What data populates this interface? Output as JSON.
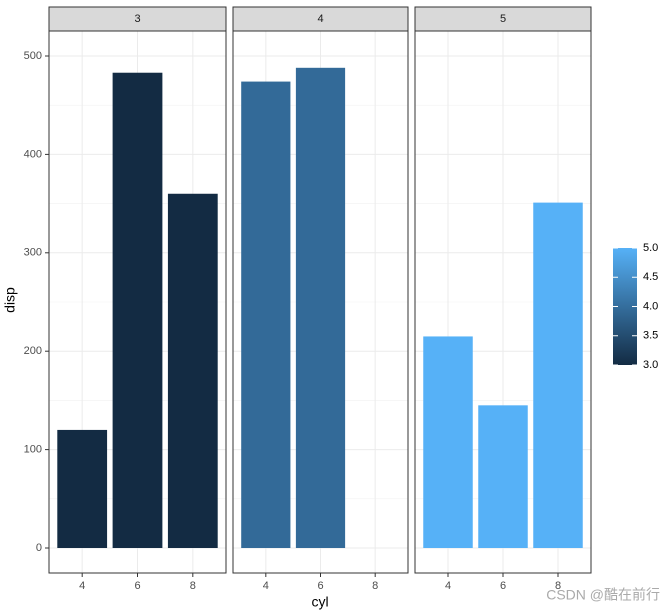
{
  "chart_data": {
    "type": "bar",
    "x_label": "cyl",
    "y_label": "disp",
    "categories": [
      "4",
      "6",
      "8"
    ],
    "facets": [
      {
        "label": "3",
        "color": "#132B43",
        "values": [
          120,
          483,
          360
        ]
      },
      {
        "label": "4",
        "color": "#336A98",
        "values": [
          474,
          488,
          null
        ]
      },
      {
        "label": "5",
        "color": "#56B1F7",
        "values": [
          215,
          145,
          351
        ]
      }
    ],
    "ylim": [
      -25.4,
      525.4
    ],
    "yticks": [
      0,
      100,
      200,
      300,
      400,
      500
    ],
    "yminorticks": [
      50,
      150,
      250,
      350,
      450
    ],
    "grid": true,
    "colorbar": {
      "lim": [
        3,
        5
      ],
      "colors": [
        "#132B43",
        "#56B1F7"
      ],
      "ticks": [
        {
          "value": 3,
          "label": "3.0"
        },
        {
          "value": 3.5,
          "label": "3.5"
        },
        {
          "value": 4,
          "label": "4.0"
        },
        {
          "value": 4.5,
          "label": "4.5"
        },
        {
          "value": 5,
          "label": "5.0"
        }
      ]
    },
    "watermark": "CSDN @酷在前行"
  }
}
